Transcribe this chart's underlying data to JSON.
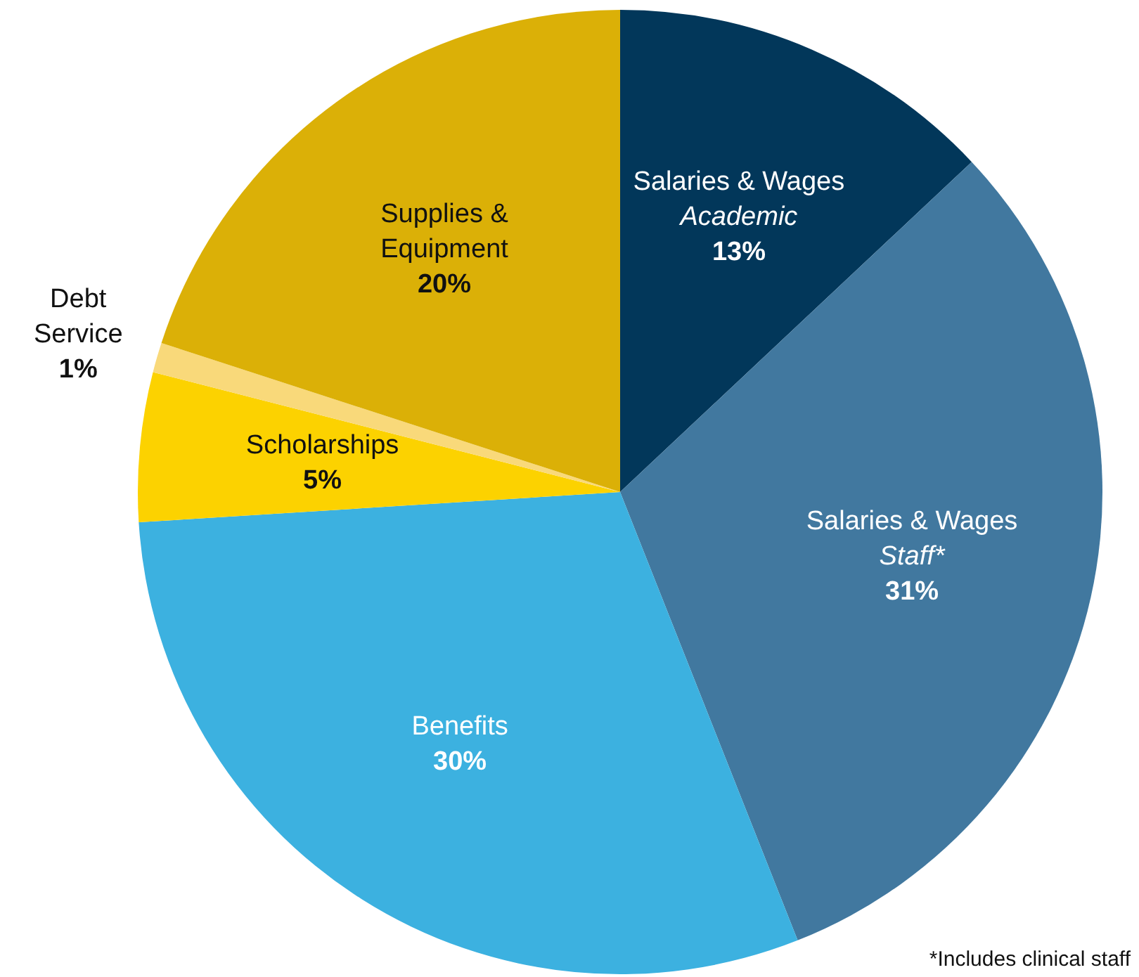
{
  "chart_data": {
    "type": "pie",
    "categories": [
      "Salaries & Wages\nAcademic",
      "Salaries & Wages\nStaff*",
      "Benefits",
      "Scholarships",
      "Debt Service",
      "Supplies & Equipment"
    ],
    "values": [
      13,
      31,
      30,
      5,
      1,
      20
    ],
    "colors": [
      "#02375a",
      "#41789f",
      "#3cb1e0",
      "#fcd200",
      "#f9d97a",
      "#dbb007"
    ],
    "value_labels": [
      "13%",
      "31%",
      "30%",
      "5%",
      "1%",
      "20%"
    ],
    "legend": false,
    "annotations": [
      "*Includes clinical staff"
    ]
  }
}
